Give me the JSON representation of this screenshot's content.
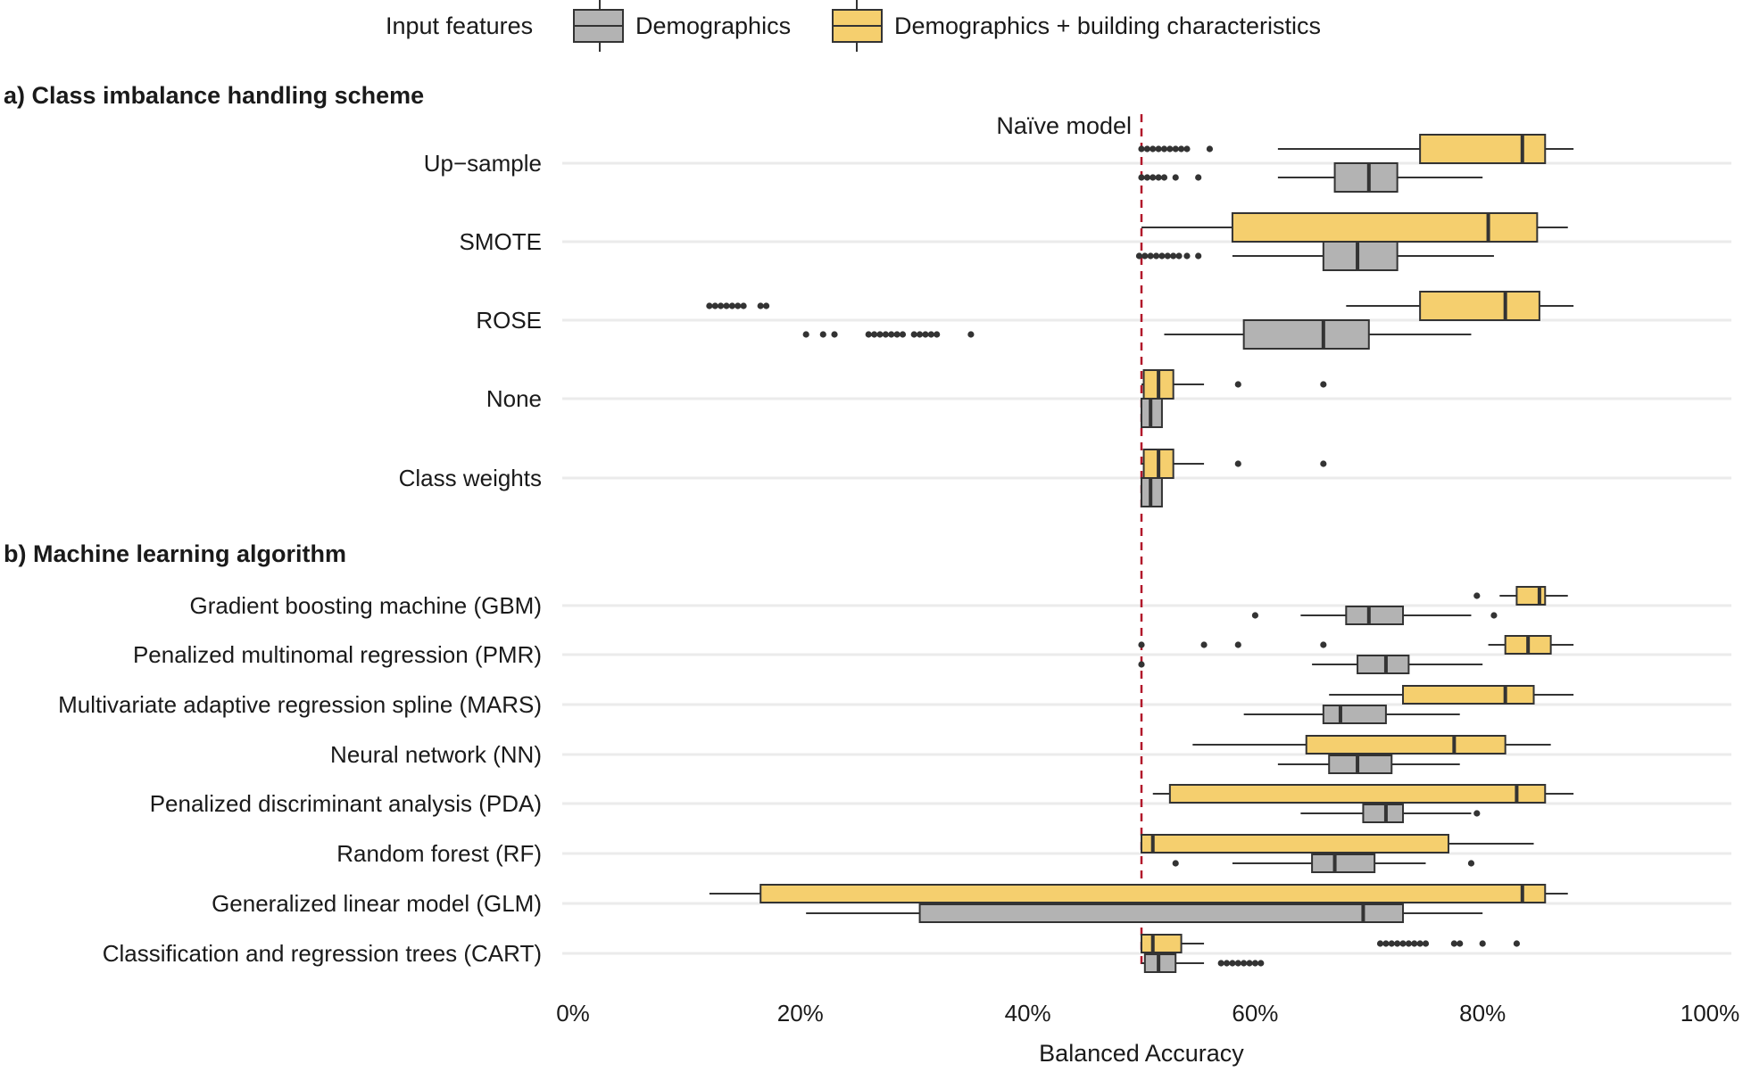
{
  "colors": {
    "demographics_fill": "#b3b3b3",
    "building_fill": "#f5cf6e",
    "box_stroke": "#333333",
    "grid": "#ebebeb",
    "naive_line": "#b2182b",
    "outlier": "#333333"
  },
  "legend": {
    "title": "Input features",
    "items": [
      {
        "label": "Demographics",
        "color": "#b3b3b3"
      },
      {
        "label": "Demographics + building characteristics",
        "color": "#f5cf6e"
      }
    ],
    "placement": "top"
  },
  "chart_data": {
    "type": "boxplot",
    "orientation": "horizontal",
    "xlabel": "Balanced Accuracy",
    "xlim": [
      0,
      100
    ],
    "x_ticks": [
      "0%",
      "20%",
      "40%",
      "60%",
      "80%",
      "100%"
    ],
    "x_tick_values": [
      0,
      20,
      40,
      60,
      80,
      100
    ],
    "reference_line": {
      "value": 50,
      "label": "Naïve model",
      "style": "dashed"
    },
    "grid": "horizontal major gridlines",
    "series_names": [
      "Demographics",
      "Demographics + building characteristics"
    ],
    "panels": [
      {
        "title": "a) Class imbalance handling scheme",
        "categories": [
          {
            "label": "Up−sample",
            "demographics": {
              "min": 62,
              "q1": 67,
              "median": 70,
              "q3": 72.5,
              "max": 80,
              "outliers": [
                50,
                50.5,
                51,
                51.5,
                52,
                53,
                55
              ]
            },
            "building": {
              "min": 62,
              "q1": 74.5,
              "median": 83.5,
              "q3": 85.5,
              "max": 88,
              "outliers": [
                50,
                50.5,
                51,
                51.5,
                52,
                52.5,
                53,
                53.5,
                54,
                56
              ]
            }
          },
          {
            "label": "SMOTE",
            "demographics": {
              "min": 58,
              "q1": 66,
              "median": 69,
              "q3": 72.5,
              "max": 81,
              "outliers": [
                49.8,
                50.3,
                50.8,
                51.3,
                51.8,
                52.3,
                52.8,
                53.3,
                54,
                55
              ]
            },
            "building": {
              "min": 50,
              "q1": 58,
              "median": 80.5,
              "q3": 84.8,
              "max": 87.5,
              "outliers": []
            }
          },
          {
            "label": "ROSE",
            "demographics": {
              "min": 52,
              "q1": 59,
              "median": 66,
              "q3": 70,
              "max": 79,
              "outliers": [
                20.5,
                22,
                23,
                26,
                26.5,
                27,
                27.5,
                28,
                28.5,
                29,
                30,
                30.5,
                31,
                31.5,
                32,
                35
              ]
            },
            "building": {
              "min": 68,
              "q1": 74.5,
              "median": 82,
              "q3": 85,
              "max": 88,
              "outliers": [
                12,
                12.5,
                13,
                13.5,
                14,
                14.5,
                15,
                16.5,
                17
              ]
            }
          },
          {
            "label": "None",
            "demographics": {
              "min": 50,
              "q1": 50,
              "median": 50.8,
              "q3": 51.8,
              "max": 51.8,
              "outliers": []
            },
            "building": {
              "min": 50,
              "q1": 50.2,
              "median": 51.5,
              "q3": 52.8,
              "max": 55.5,
              "outliers": [
                58.5,
                66
              ]
            }
          },
          {
            "label": "Class weights",
            "demographics": {
              "min": 50,
              "q1": 50,
              "median": 50.8,
              "q3": 51.8,
              "max": 51.8,
              "outliers": []
            },
            "building": {
              "min": 50,
              "q1": 50.2,
              "median": 51.5,
              "q3": 52.8,
              "max": 55.5,
              "outliers": [
                58.5,
                66
              ]
            }
          }
        ]
      },
      {
        "title": "b) Machine learning algorithm",
        "categories": [
          {
            "label": "Gradient boosting machine (GBM)",
            "demographics": {
              "min": 64,
              "q1": 68,
              "median": 70,
              "q3": 73,
              "max": 79,
              "outliers": [
                60,
                81
              ]
            },
            "building": {
              "min": 81.5,
              "q1": 83,
              "median": 85,
              "q3": 85.5,
              "max": 87.5,
              "outliers": [
                79.5
              ]
            }
          },
          {
            "label": "Penalized multinomal regression (PMR)",
            "demographics": {
              "min": 65,
              "q1": 69,
              "median": 71.5,
              "q3": 73.5,
              "max": 80,
              "outliers": [
                50
              ]
            },
            "building": {
              "min": 80.5,
              "q1": 82,
              "median": 84,
              "q3": 86,
              "max": 88,
              "outliers": [
                50,
                55.5,
                58.5,
                66
              ]
            }
          },
          {
            "label": "Multivariate adaptive regression spline (MARS)",
            "demographics": {
              "min": 59,
              "q1": 66,
              "median": 67.5,
              "q3": 71.5,
              "max": 78,
              "outliers": []
            },
            "building": {
              "min": 66.5,
              "q1": 73,
              "median": 82,
              "q3": 84.5,
              "max": 88,
              "outliers": []
            }
          },
          {
            "label": "Neural network (NN)",
            "demographics": {
              "min": 62,
              "q1": 66.5,
              "median": 69,
              "q3": 72,
              "max": 78,
              "outliers": []
            },
            "building": {
              "min": 54.5,
              "q1": 64.5,
              "median": 77.5,
              "q3": 82,
              "max": 86,
              "outliers": []
            }
          },
          {
            "label": "Penalized discriminant analysis (PDA)",
            "demographics": {
              "min": 64,
              "q1": 69.5,
              "median": 71.5,
              "q3": 73,
              "max": 79,
              "outliers": [
                79.5
              ]
            },
            "building": {
              "min": 51,
              "q1": 52.5,
              "median": 83,
              "q3": 85.5,
              "max": 88,
              "outliers": []
            }
          },
          {
            "label": "Random forest (RF)",
            "demographics": {
              "min": 58,
              "q1": 65,
              "median": 67,
              "q3": 70.5,
              "max": 75,
              "outliers": [
                53,
                79
              ]
            },
            "building": {
              "min": 50,
              "q1": 50,
              "median": 51,
              "q3": 77,
              "max": 84.5,
              "outliers": []
            }
          },
          {
            "label": "Generalized linear model (GLM)",
            "demographics": {
              "min": 20.5,
              "q1": 30.5,
              "median": 69.5,
              "q3": 73,
              "max": 80,
              "outliers": []
            },
            "building": {
              "min": 12,
              "q1": 16.5,
              "median": 83.5,
              "q3": 85.5,
              "max": 87.5,
              "outliers": []
            }
          },
          {
            "label": "Classification and regression trees (CART)",
            "demographics": {
              "min": 50,
              "q1": 50.3,
              "median": 51.5,
              "q3": 53,
              "max": 55.5,
              "outliers": [
                57,
                57.5,
                58,
                58.5,
                59,
                59.5,
                60,
                60.5
              ]
            },
            "building": {
              "min": 50,
              "q1": 50,
              "median": 51,
              "q3": 53.5,
              "max": 55.5,
              "outliers": [
                71,
                71.5,
                72,
                72.5,
                73,
                73.5,
                74,
                74.5,
                75,
                77.5,
                78,
                80,
                83
              ]
            }
          }
        ]
      }
    ]
  }
}
